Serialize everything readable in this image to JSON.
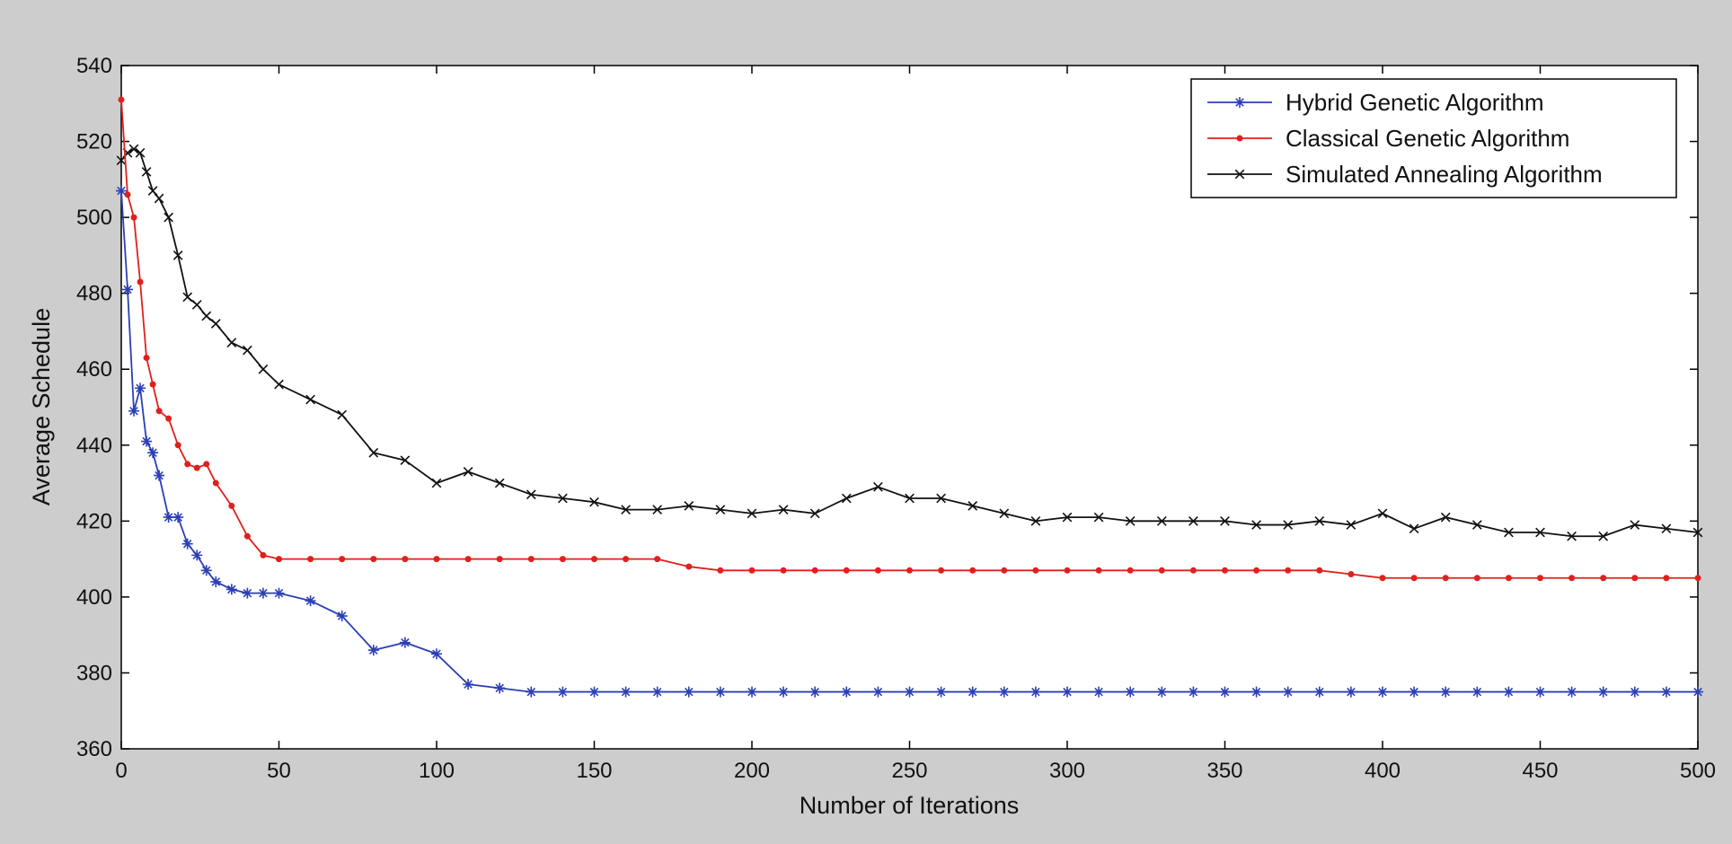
{
  "chart_data": {
    "type": "line",
    "xlabel": "Number of Iterations",
    "ylabel": "Average Schedule",
    "x": [
      0,
      2,
      4,
      6,
      8,
      10,
      12,
      15,
      18,
      21,
      24,
      27,
      30,
      35,
      40,
      45,
      50,
      60,
      70,
      80,
      90,
      100,
      110,
      120,
      130,
      140,
      150,
      160,
      170,
      180,
      190,
      200,
      210,
      220,
      230,
      240,
      250,
      260,
      270,
      280,
      290,
      300,
      310,
      320,
      330,
      340,
      350,
      360,
      370,
      380,
      390,
      400,
      410,
      420,
      430,
      440,
      450,
      460,
      470,
      480,
      490,
      500
    ],
    "series": [
      {
        "name": "Hybrid Genetic Algorithm",
        "color": "#2b3fb5",
        "marker": "star",
        "values": [
          507,
          481,
          449,
          455,
          441,
          438,
          432,
          421,
          421,
          414,
          411,
          407,
          404,
          402,
          401,
          401,
          401,
          399,
          395,
          386,
          388,
          385,
          377,
          376,
          375,
          375,
          375,
          375,
          375,
          375,
          375,
          375,
          375,
          375,
          375,
          375,
          375,
          375,
          375,
          375,
          375,
          375,
          375,
          375,
          375,
          375,
          375,
          375,
          375,
          375,
          375,
          375,
          375,
          375,
          375,
          375,
          375,
          375,
          375,
          375,
          375,
          375
        ]
      },
      {
        "name": "Classical Genetic Algorithm",
        "color": "#e0201c",
        "marker": "dot",
        "values": [
          531,
          506,
          500,
          483,
          463,
          456,
          449,
          447,
          440,
          435,
          434,
          435,
          430,
          424,
          416,
          411,
          410,
          410,
          410,
          410,
          410,
          410,
          410,
          410,
          410,
          410,
          410,
          410,
          410,
          408,
          407,
          407,
          407,
          407,
          407,
          407,
          407,
          407,
          407,
          407,
          407,
          407,
          407,
          407,
          407,
          407,
          407,
          407,
          407,
          407,
          406,
          405,
          405,
          405,
          405,
          405,
          405,
          405,
          405,
          405,
          405,
          405
        ]
      },
      {
        "name": "Simulated Annealing Algorithm",
        "color": "#111111",
        "marker": "x",
        "values": [
          515,
          517,
          518,
          517,
          512,
          507,
          505,
          500,
          490,
          479,
          477,
          474,
          472,
          467,
          465,
          460,
          456,
          452,
          448,
          438,
          436,
          430,
          433,
          430,
          427,
          426,
          425,
          423,
          423,
          424,
          423,
          422,
          423,
          422,
          426,
          429,
          426,
          426,
          424,
          422,
          420,
          421,
          421,
          420,
          420,
          420,
          420,
          419,
          419,
          420,
          419,
          422,
          418,
          421,
          419,
          417,
          417,
          416,
          416,
          419,
          418,
          417
        ]
      }
    ],
    "xlim": [
      0,
      500
    ],
    "xticks": [
      0,
      50,
      100,
      150,
      200,
      250,
      300,
      350,
      400,
      450,
      500
    ],
    "ylim": [
      360,
      540
    ],
    "yticks": [
      360,
      380,
      400,
      420,
      440,
      460,
      480,
      500,
      520,
      540
    ],
    "legend": "upper right"
  }
}
